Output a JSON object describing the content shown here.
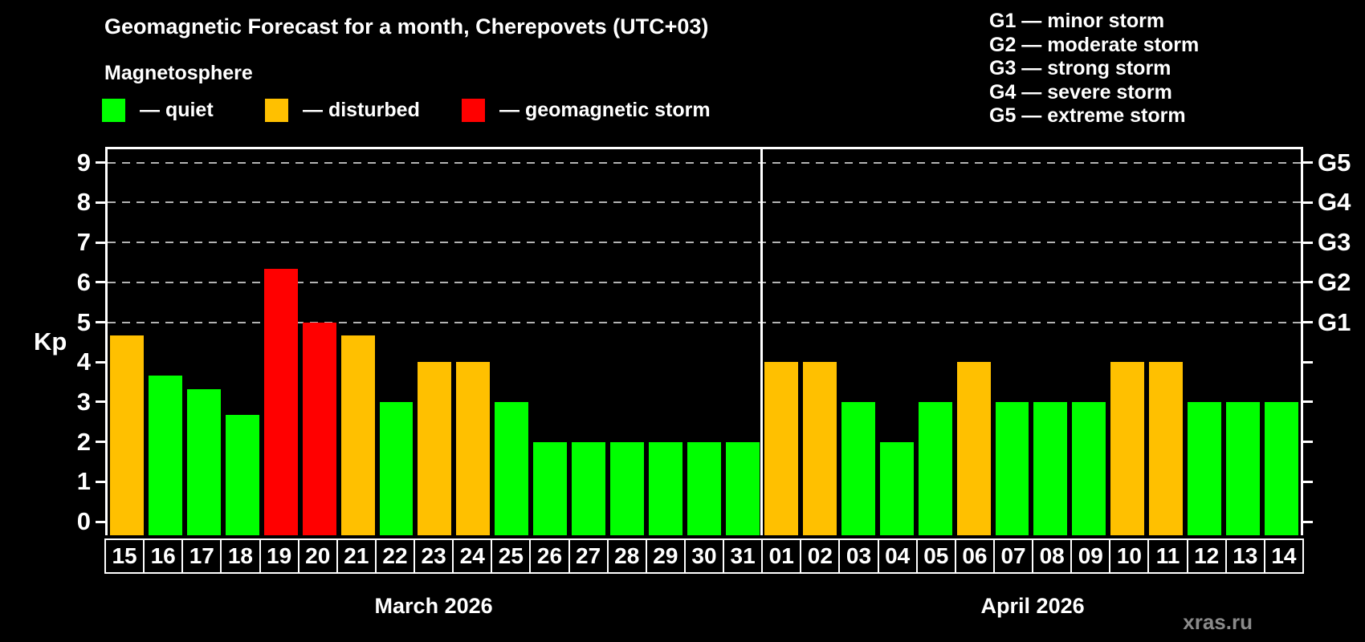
{
  "title": "Geomagnetic Forecast for a month, Cherepovets (UTC+03)",
  "subtitle": "Magnetosphere",
  "legend": {
    "items": [
      {
        "status": "quiet",
        "label": "— quiet"
      },
      {
        "status": "disturbed",
        "label": "— disturbed"
      },
      {
        "status": "storm",
        "label": "— geomagnetic storm"
      }
    ]
  },
  "storm_scale_legend": [
    "G1 — minor storm",
    "G2 — moderate storm",
    "G3 — strong storm",
    "G4 — severe storm",
    "G5 — extreme storm"
  ],
  "watermark": "xras.ru",
  "chart_data": {
    "type": "bar",
    "title": "Geomagnetic Forecast for a month, Cherepovets (UTC+03)",
    "ylabel": "Kp",
    "ylim": [
      0,
      9.4
    ],
    "yticks": [
      0,
      1,
      2,
      3,
      4,
      5,
      6,
      7,
      8,
      9
    ],
    "grid": "dashed horizontal lines at G-storm levels",
    "right_axis_labels": [
      {
        "text": "G1",
        "kp": 5
      },
      {
        "text": "G2",
        "kp": 6
      },
      {
        "text": "G3",
        "kp": 7
      },
      {
        "text": "G4",
        "kp": 8
      },
      {
        "text": "G5",
        "kp": 9
      }
    ],
    "status_colors": {
      "quiet": "#00ff00",
      "disturbed": "#ffc000",
      "storm": "#ff0000"
    },
    "groups": [
      {
        "label": "March 2026",
        "days": [
          {
            "date": "15",
            "kp": 4.67,
            "status": "disturbed"
          },
          {
            "date": "16",
            "kp": 3.67,
            "status": "quiet"
          },
          {
            "date": "17",
            "kp": 3.33,
            "status": "quiet"
          },
          {
            "date": "18",
            "kp": 2.67,
            "status": "quiet"
          },
          {
            "date": "19",
            "kp": 6.33,
            "status": "storm"
          },
          {
            "date": "20",
            "kp": 5.0,
            "status": "storm"
          },
          {
            "date": "21",
            "kp": 4.67,
            "status": "disturbed"
          },
          {
            "date": "22",
            "kp": 3.0,
            "status": "quiet"
          },
          {
            "date": "23",
            "kp": 4.0,
            "status": "disturbed"
          },
          {
            "date": "24",
            "kp": 4.0,
            "status": "disturbed"
          },
          {
            "date": "25",
            "kp": 3.0,
            "status": "quiet"
          },
          {
            "date": "26",
            "kp": 2.0,
            "status": "quiet"
          },
          {
            "date": "27",
            "kp": 2.0,
            "status": "quiet"
          },
          {
            "date": "28",
            "kp": 2.0,
            "status": "quiet"
          },
          {
            "date": "29",
            "kp": 2.0,
            "status": "quiet"
          },
          {
            "date": "30",
            "kp": 2.0,
            "status": "quiet"
          },
          {
            "date": "31",
            "kp": 2.0,
            "status": "quiet"
          }
        ]
      },
      {
        "label": "April 2026",
        "days": [
          {
            "date": "01",
            "kp": 4.0,
            "status": "disturbed"
          },
          {
            "date": "02",
            "kp": 4.0,
            "status": "disturbed"
          },
          {
            "date": "03",
            "kp": 3.0,
            "status": "quiet"
          },
          {
            "date": "04",
            "kp": 2.0,
            "status": "quiet"
          },
          {
            "date": "05",
            "kp": 3.0,
            "status": "quiet"
          },
          {
            "date": "06",
            "kp": 4.0,
            "status": "disturbed"
          },
          {
            "date": "07",
            "kp": 3.0,
            "status": "quiet"
          },
          {
            "date": "08",
            "kp": 3.0,
            "status": "quiet"
          },
          {
            "date": "09",
            "kp": 3.0,
            "status": "quiet"
          },
          {
            "date": "10",
            "kp": 4.0,
            "status": "disturbed"
          },
          {
            "date": "11",
            "kp": 4.0,
            "status": "disturbed"
          },
          {
            "date": "12",
            "kp": 3.0,
            "status": "quiet"
          },
          {
            "date": "13",
            "kp": 3.0,
            "status": "quiet"
          },
          {
            "date": "14",
            "kp": 3.0,
            "status": "quiet"
          }
        ]
      }
    ]
  }
}
